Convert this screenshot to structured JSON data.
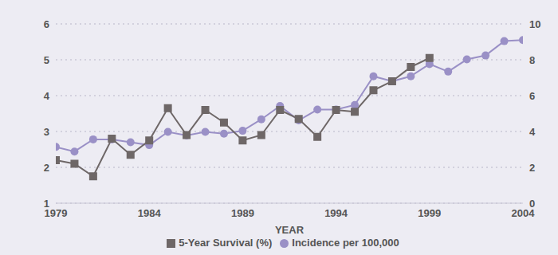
{
  "chart_data": {
    "type": "line",
    "x_label": "YEAR",
    "x": [
      1979,
      1980,
      1981,
      1982,
      1983,
      1984,
      1985,
      1986,
      1987,
      1988,
      1989,
      1990,
      1991,
      1992,
      1993,
      1994,
      1995,
      1996,
      1997,
      1998,
      1999,
      2000,
      2001,
      2002,
      2003,
      2004
    ],
    "xlim": [
      1979,
      2004
    ],
    "xticks": [
      1979,
      1984,
      1989,
      1994,
      1999,
      2004
    ],
    "ylim": [
      1,
      6
    ],
    "yticks": [
      1,
      2,
      3,
      4,
      5,
      6
    ],
    "y2lim": [
      0,
      10
    ],
    "y2ticks": [
      0,
      2,
      4,
      6,
      8,
      10
    ],
    "grid": true,
    "legend": "bottom",
    "series": [
      {
        "name": "Incidence per 100,000",
        "color": "#9a90c6",
        "marker": "circle",
        "values": [
          2.57,
          2.44,
          2.78,
          2.78,
          2.7,
          2.62,
          2.99,
          2.89,
          2.99,
          2.94,
          3.02,
          3.34,
          3.71,
          3.31,
          3.61,
          3.61,
          3.74,
          4.54,
          4.4,
          4.54,
          4.88,
          4.67,
          5.01,
          5.12,
          5.52,
          5.55
        ]
      },
      {
        "name": "5-Year Survival (%)",
        "color": "#6e6767",
        "marker": "square",
        "axis": "y2",
        "values": [
          2.4,
          2.2,
          1.5,
          3.6,
          2.7,
          3.5,
          5.3,
          3.8,
          5.2,
          4.5,
          3.5,
          3.8,
          5.2,
          4.7,
          3.7,
          5.2,
          5.1,
          6.3,
          6.8,
          7.6,
          8.1,
          null,
          null,
          null,
          null,
          null
        ]
      }
    ]
  }
}
